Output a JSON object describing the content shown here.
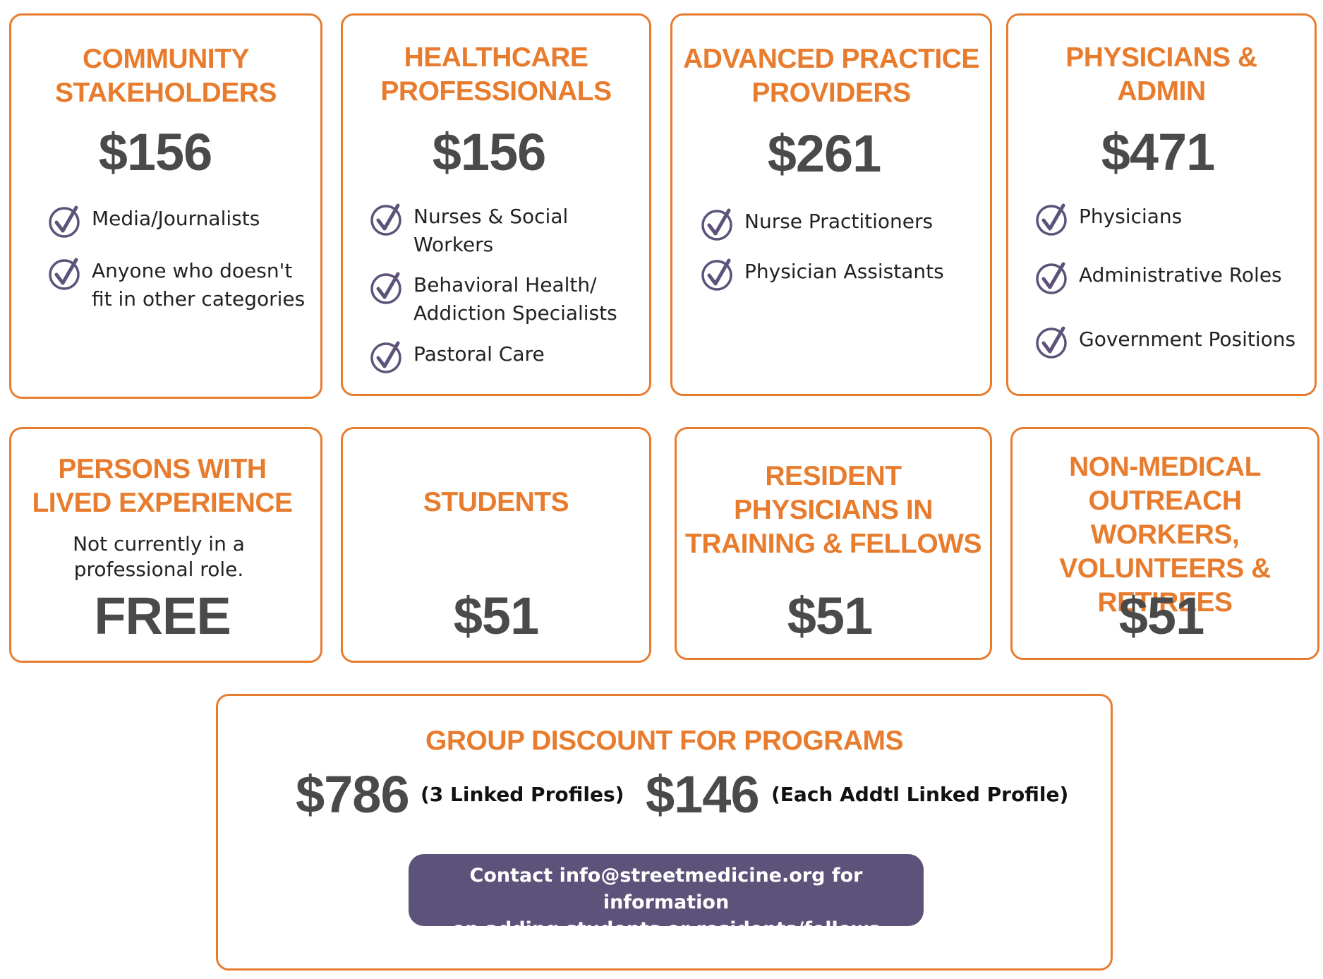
{
  "colors": {
    "accent": "#e87c2e",
    "price": "#4a4a4a",
    "check": "#5d527a",
    "button": "#5d527a"
  },
  "cards": [
    {
      "title": "COMMUNITY\nSTAKEHOLDERS",
      "price": "$156",
      "items": [
        "Media/Journalists",
        "Anyone who doesn't\nfit in other categories"
      ]
    },
    {
      "title": "HEALTHCARE\nPROFESSIONALS",
      "price": "$156",
      "items": [
        "Nurses & Social\n Workers",
        "Behavioral Health/\nAddiction Specialists",
        "Pastoral Care"
      ]
    },
    {
      "title": "ADVANCED PRACTICE\nPROVIDERS",
      "price": "$261",
      "items": [
        "Nurse Practitioners",
        "Physician Assistants"
      ]
    },
    {
      "title": "PHYSICIANS &\nADMIN",
      "price": "$471",
      "items": [
        "Physicians",
        "Administrative Roles",
        "Government Positions"
      ]
    },
    {
      "title": "PERSONS WITH\nLIVED EXPERIENCE",
      "note": "Not  currently in a\nprofessional role.",
      "price": "FREE"
    },
    {
      "title": "STUDENTS",
      "price": "$51"
    },
    {
      "title": "RESIDENT\nPHYSICIANS IN\nTRAINING & FELLOWS",
      "price": "$51"
    },
    {
      "title": "NON-MEDICAL\nOUTREACH WORKERS,\nVOLUNTEERS &\nRETIREES",
      "price": "$51"
    }
  ],
  "group": {
    "title": "GROUP DISCOUNT FOR PROGRAMS",
    "price1": "$786",
    "note1": "(3 Linked Profiles)",
    "price2": "$146",
    "note2": "(Each Addtl Linked Profile)",
    "contact": "Contact info@streetmedicine.org for information\non adding students or residents/fellows"
  }
}
